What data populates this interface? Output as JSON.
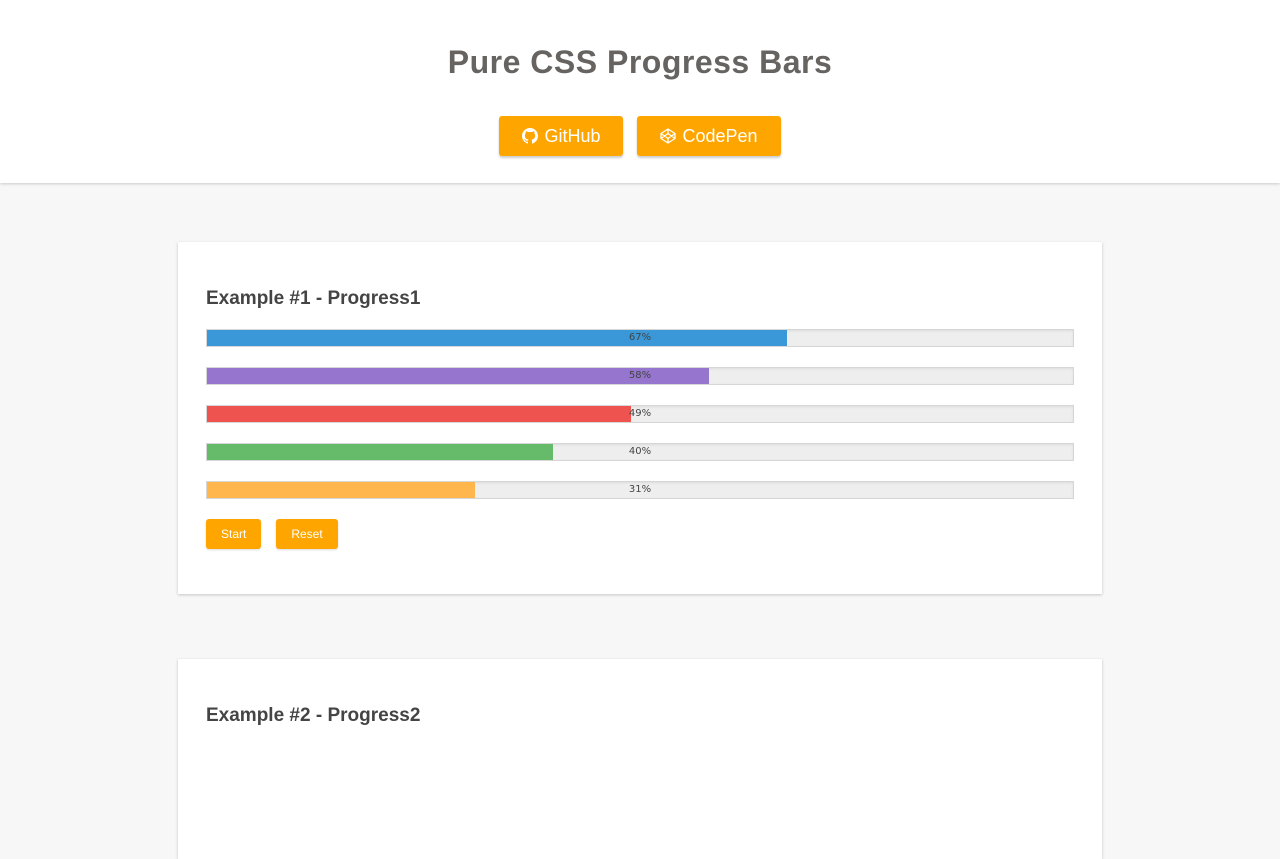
{
  "header": {
    "title": "Pure CSS Progress Bars",
    "buttons": [
      {
        "label": "GitHub",
        "icon": "github-icon"
      },
      {
        "label": "CodePen",
        "icon": "codepen-icon"
      }
    ]
  },
  "accent_color": "#ffa500",
  "examples": [
    {
      "title": "Example #1 - Progress1",
      "bars": [
        {
          "percent": 67,
          "label": "67%",
          "color": "#3a98d8"
        },
        {
          "percent": 58,
          "label": "58%",
          "color": "#9575cd"
        },
        {
          "percent": 49,
          "label": "49%",
          "color": "#ef5350"
        },
        {
          "percent": 40,
          "label": "40%",
          "color": "#66bb6a"
        },
        {
          "percent": 31,
          "label": "31%",
          "color": "#ffb74d"
        }
      ],
      "actions": {
        "start_label": "Start",
        "reset_label": "Reset"
      }
    },
    {
      "title": "Example #2 - Progress2"
    }
  ]
}
